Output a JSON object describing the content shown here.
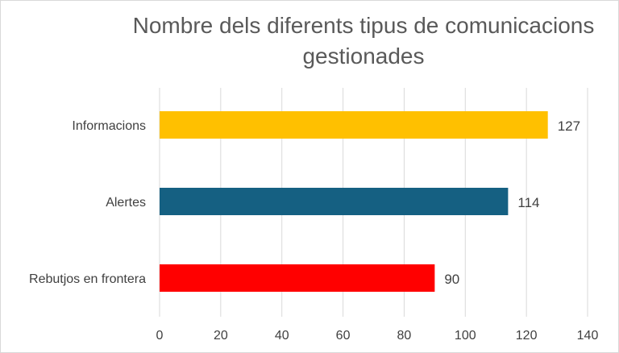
{
  "chart_data": {
    "type": "bar",
    "orientation": "horizontal",
    "title": "Nombre dels diferents tipus de comunicacions gestionades",
    "categories": [
      "Informacions",
      "Alertes",
      "Rebutjos en frontera"
    ],
    "values": [
      127,
      114,
      90
    ],
    "colors": [
      "#ffc000",
      "#156082",
      "#ff0000"
    ],
    "xlim": [
      0,
      140
    ],
    "xticks": [
      "0",
      "20",
      "40",
      "60",
      "80",
      "100",
      "120",
      "140"
    ],
    "data_labels": [
      "127",
      "114",
      "90"
    ],
    "grid": "vertical",
    "legend": "none"
  }
}
